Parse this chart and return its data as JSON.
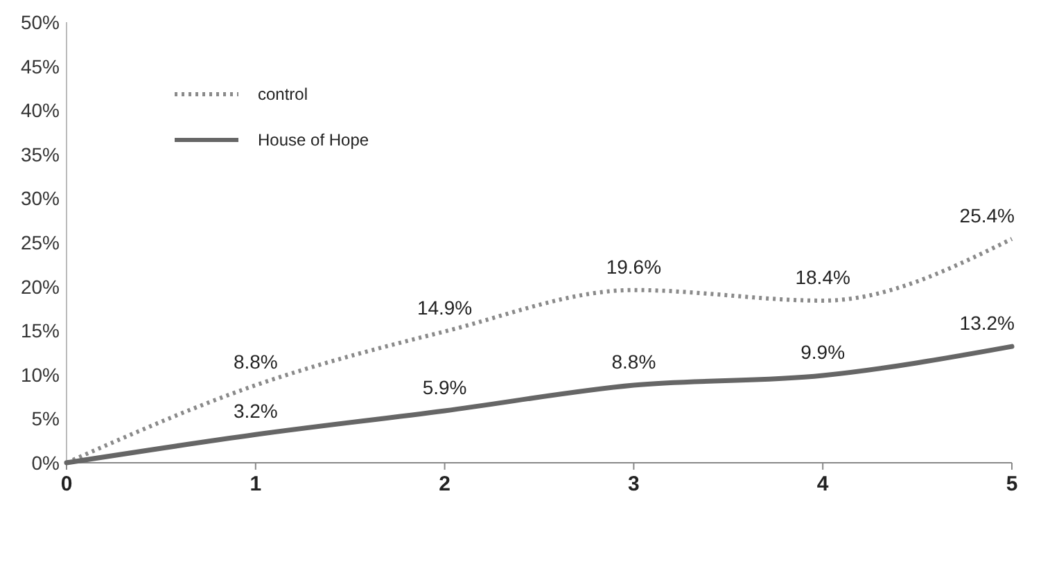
{
  "chart_data": {
    "type": "line",
    "x": [
      0,
      1,
      2,
      3,
      4,
      5
    ],
    "xlim": [
      0,
      5
    ],
    "xticks": [
      0,
      1,
      2,
      3,
      4,
      5
    ],
    "ylim": [
      0,
      50
    ],
    "yticks": [
      {
        "value": 0,
        "label": "0%"
      },
      {
        "value": 5,
        "label": "5%"
      },
      {
        "value": 10,
        "label": "10%"
      },
      {
        "value": 15,
        "label": "15%"
      },
      {
        "value": 20,
        "label": "20%"
      },
      {
        "value": 25,
        "label": "25%"
      },
      {
        "value": 30,
        "label": "30%"
      },
      {
        "value": 35,
        "label": "35%"
      },
      {
        "value": 40,
        "label": "40%"
      },
      {
        "value": 45,
        "label": "45%"
      },
      {
        "value": 50,
        "label": "50%"
      }
    ],
    "grid": false,
    "legend": "top left",
    "marker": "none",
    "series": [
      {
        "name": "control",
        "color": "#8a8a8a",
        "line_style": "dotted",
        "values": [
          0,
          8.8,
          14.9,
          19.6,
          18.4,
          25.4
        ],
        "value_labels": [
          null,
          "8.8%",
          "14.9%",
          "19.6%",
          "18.4%",
          "25.4%"
        ]
      },
      {
        "name": "House of Hope",
        "color": "#666666",
        "line_style": "solid",
        "values": [
          0,
          3.2,
          5.9,
          8.8,
          9.9,
          13.2
        ],
        "value_labels": [
          null,
          "3.2%",
          "5.9%",
          "8.8%",
          "9.9%",
          "13.2%"
        ]
      }
    ]
  }
}
